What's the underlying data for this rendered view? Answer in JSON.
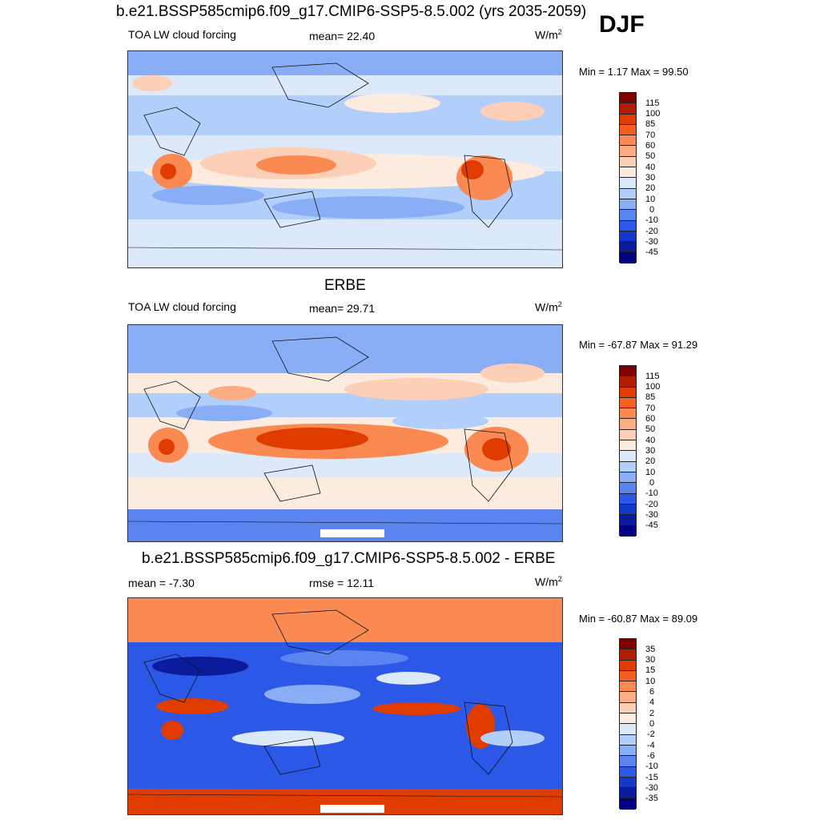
{
  "season": "DJF",
  "panels": [
    {
      "title": "b.e21.BSSP585cmip6.f09_g17.CMIP6-SSP5-8.5.002 (yrs 2035-2059)",
      "left_label": "TOA LW cloud forcing",
      "stat_label": "mean=  22.40",
      "units_base": "W/m",
      "units_exp": "2",
      "minmax": "Min =   1.17 Max =  99.50",
      "levels": [
        "115",
        "100",
        "85",
        "70",
        "60",
        "50",
        "40",
        "30",
        "20",
        "10",
        "0",
        "-10",
        "-20",
        "-30",
        "-45"
      ]
    },
    {
      "title": "ERBE",
      "left_label": "TOA LW cloud forcing",
      "stat_label": "mean=  29.71",
      "units_base": "W/m",
      "units_exp": "2",
      "minmax": "Min = -67.87 Max =  91.29",
      "levels": [
        "115",
        "100",
        "85",
        "70",
        "60",
        "50",
        "40",
        "30",
        "20",
        "10",
        "0",
        "-10",
        "-20",
        "-30",
        "-45"
      ]
    },
    {
      "title": "b.e21.BSSP585cmip6.f09_g17.CMIP6-SSP5-8.5.002 - ERBE",
      "left_label": "mean =  -7.30",
      "stat_label": "rmse =  12.11",
      "units_base": "W/m",
      "units_exp": "2",
      "minmax": "Min = -60.87 Max =  89.09",
      "levels": [
        "35",
        "30",
        "15",
        "10",
        "6",
        "4",
        "2",
        "0",
        "-2",
        "-4",
        "-6",
        "-10",
        "-15",
        "-30",
        "-35"
      ]
    }
  ],
  "colorbar_colors": [
    "#800000",
    "#b01e00",
    "#e03c00",
    "#f5601e",
    "#fa8a52",
    "#fbac82",
    "#fdcfb6",
    "#fdebe0",
    "#dce9fb",
    "#b2cefa",
    "#8aaef5",
    "#5a84f0",
    "#2b58e6",
    "#1438c8",
    "#0a1c9c",
    "#000080"
  ],
  "map_colors": {
    "ocean_base_1": "#dce9fb",
    "ocean_base_2": "#fdebe0",
    "ocean_base_3": "#2b58e6",
    "coast": "#111111"
  }
}
